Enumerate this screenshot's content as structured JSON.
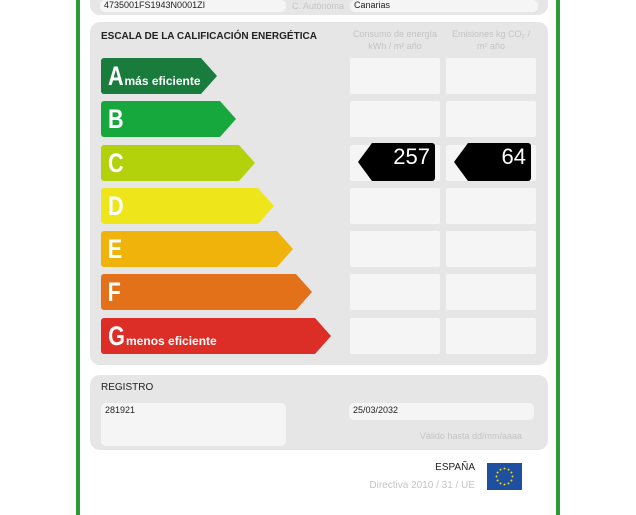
{
  "header": {
    "reference": "4735001FS1943N0001ZI",
    "region_label": "C. Autónoma",
    "region_value": "Canarias"
  },
  "scale": {
    "title": "ESCALA DE LA CALIFICACIÓN ENERGÉTICA",
    "col1": "Consumo de energía kWh / m² año",
    "col2": "Emisiones kg CO₂ / m² año",
    "ratings": [
      {
        "letter": "A",
        "sub": "más eficiente",
        "color": "#1a7c3c"
      },
      {
        "letter": "B",
        "sub": "",
        "color": "#16a83c"
      },
      {
        "letter": "C",
        "sub": "",
        "color": "#b4d20b"
      },
      {
        "letter": "D",
        "sub": "",
        "color": "#eee51a"
      },
      {
        "letter": "E",
        "sub": "",
        "color": "#f0b30c"
      },
      {
        "letter": "F",
        "sub": "",
        "color": "#e2711a"
      },
      {
        "letter": "G",
        "sub": "menos eficiente",
        "color": "#dc2d26"
      }
    ],
    "current_rating": "C",
    "consumption": "257",
    "emissions": "64"
  },
  "registro": {
    "title": "REGISTRO",
    "number": "281921",
    "valid_date": "25/03/2032",
    "valid_label": "Válido hasta dd/mm/aaaa"
  },
  "footer": {
    "country": "ESPAÑA",
    "directive": "Directiva 2010 / 31 / UE",
    "flag_color": "#1e4fa0"
  }
}
